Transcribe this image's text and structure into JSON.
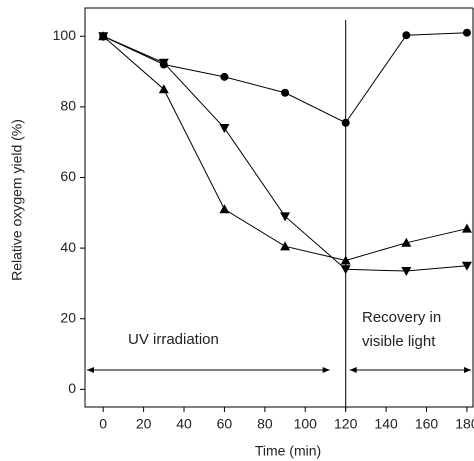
{
  "chart_data": {
    "type": "line",
    "xlabel": "Time (min)",
    "ylabel": "Relative oxygem yield (%)",
    "x": [
      0,
      30,
      60,
      90,
      120,
      150,
      180
    ],
    "series": [
      {
        "marker": "circle",
        "color": "#000000",
        "values": [
          100,
          92,
          88.5,
          84,
          75.5,
          100.3,
          101
        ]
      },
      {
        "marker": "triangle-up",
        "color": "#000000",
        "values": [
          100,
          85,
          51,
          40.5,
          36.5,
          41.5,
          45.5
        ]
      },
      {
        "marker": "triangle-down",
        "color": "#000000",
        "values": [
          100,
          92.5,
          74,
          49,
          34,
          33.5,
          35
        ]
      }
    ],
    "xlim": [
      -9,
      183
    ],
    "ylim": [
      -5,
      108
    ],
    "xticks": [
      0,
      20,
      40,
      60,
      80,
      100,
      120,
      140,
      160,
      180
    ],
    "yticks": [
      0,
      20,
      40,
      60,
      80,
      100
    ],
    "vline": 120,
    "annotations": [
      "UV irradiation",
      "Recovery in",
      "visible light"
    ]
  }
}
